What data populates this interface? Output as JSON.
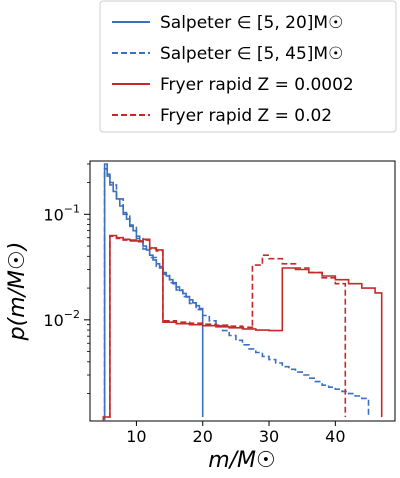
{
  "chart_data": {
    "type": "line",
    "subtype": "step-histogram",
    "xlabel": "m/M☉",
    "ylabel": "p(m/M☉)",
    "yscale": "log",
    "xlim": [
      3,
      49
    ],
    "ylim": [
      0.0011,
      0.32
    ],
    "x_ticks": [
      10,
      20,
      30,
      40
    ],
    "y_ticks": [
      {
        "value": 0.1,
        "label_base": "10",
        "label_exp": "−1"
      },
      {
        "value": 0.01,
        "label_base": "10",
        "label_exp": "−2"
      }
    ],
    "legend_position": "above-plot",
    "series": [
      {
        "name": "Salpeter ∈ [5, 20]M☉",
        "color": "#3b6fbf",
        "dash": "solid",
        "x": [
          5.2,
          5.6,
          6.0,
          6.5,
          7.0,
          7.5,
          8.0,
          8.5,
          9.0,
          9.5,
          10.0,
          10.5,
          11.0,
          11.5,
          12.0,
          12.5,
          13.0,
          13.5,
          14.0,
          14.5,
          15.0,
          15.5,
          16.0,
          16.5,
          17.0,
          17.5,
          18.0,
          18.5,
          19.0,
          19.5,
          20.0
        ],
        "y": [
          0.3,
          0.24,
          0.2,
          0.165,
          0.14,
          0.12,
          0.104,
          0.09,
          0.079,
          0.07,
          0.062,
          0.055,
          0.05,
          0.046,
          0.041,
          0.037,
          0.034,
          0.031,
          0.028,
          0.026,
          0.024,
          0.022,
          0.0205,
          0.019,
          0.0178,
          0.0165,
          0.0155,
          0.0145,
          0.0136,
          0.0128,
          0.0012
        ]
      },
      {
        "name": "Salpeter ∈ [5, 45]M☉",
        "color": "#3b6fbf",
        "dash": "dashed",
        "x": [
          5.2,
          5.6,
          6.0,
          7.0,
          8.0,
          9.0,
          10.0,
          11.0,
          12.0,
          13.0,
          14.0,
          15.0,
          16.0,
          17.0,
          18.0,
          19.0,
          20.0,
          21.0,
          22.0,
          23.0,
          24.0,
          25.0,
          26.0,
          27.0,
          28.0,
          29.0,
          30.0,
          31.0,
          32.0,
          33.0,
          34.0,
          35.0,
          36.0,
          37.0,
          38.0,
          39.0,
          40.0,
          41.0,
          42.0,
          43.0,
          44.0,
          45.0
        ],
        "y": [
          0.27,
          0.23,
          0.19,
          0.14,
          0.1,
          0.077,
          0.059,
          0.047,
          0.039,
          0.032,
          0.027,
          0.0225,
          0.0192,
          0.0166,
          0.0143,
          0.0125,
          0.011,
          0.0098,
          0.0088,
          0.0079,
          0.0071,
          0.0064,
          0.0058,
          0.0053,
          0.0049,
          0.0045,
          0.0042,
          0.0039,
          0.0036,
          0.0034,
          0.0032,
          0.003,
          0.0028,
          0.0026,
          0.0024,
          0.0023,
          0.0022,
          0.0021,
          0.002,
          0.0019,
          0.0018,
          0.0012
        ]
      },
      {
        "name": "Fryer rapid Z = 0.0002",
        "color": "#c42a2a",
        "dash": "solid",
        "x": [
          5.0,
          6.0,
          7.0,
          8.0,
          9.0,
          10.0,
          11.0,
          12.0,
          13.0,
          14.0,
          14.0,
          16.0,
          18.0,
          20.0,
          22.0,
          24.0,
          26.0,
          28.0,
          30.0,
          32.0,
          32.0,
          34.0,
          36.0,
          38.0,
          40.0,
          42.0,
          44.0,
          46.0,
          47.0
        ],
        "y": [
          0.0012,
          0.063,
          0.06,
          0.058,
          0.057,
          0.056,
          0.058,
          0.048,
          0.046,
          0.045,
          0.0095,
          0.0092,
          0.009,
          0.0088,
          0.0086,
          0.0084,
          0.0082,
          0.008,
          0.0079,
          0.0078,
          0.031,
          0.03,
          0.028,
          0.026,
          0.024,
          0.022,
          0.02,
          0.018,
          0.0012
        ]
      },
      {
        "name": "Fryer rapid Z = 0.02",
        "color": "#c42a2a",
        "dash": "dashed",
        "x": [
          5.0,
          6.0,
          7.0,
          8.0,
          9.0,
          10.0,
          11.0,
          12.0,
          13.0,
          14.0,
          14.0,
          16.0,
          18.0,
          20.0,
          22.0,
          24.0,
          26.0,
          27.5,
          27.5,
          29.0,
          30.0,
          32.0,
          34.0,
          36.0,
          38.0,
          40.0,
          41.5
        ],
        "y": [
          0.0012,
          0.062,
          0.059,
          0.057,
          0.056,
          0.055,
          0.057,
          0.047,
          0.045,
          0.044,
          0.0098,
          0.0095,
          0.0093,
          0.0091,
          0.0089,
          0.0087,
          0.0085,
          0.0083,
          0.033,
          0.041,
          0.038,
          0.034,
          0.031,
          0.028,
          0.025,
          0.022,
          0.0012
        ]
      }
    ]
  }
}
